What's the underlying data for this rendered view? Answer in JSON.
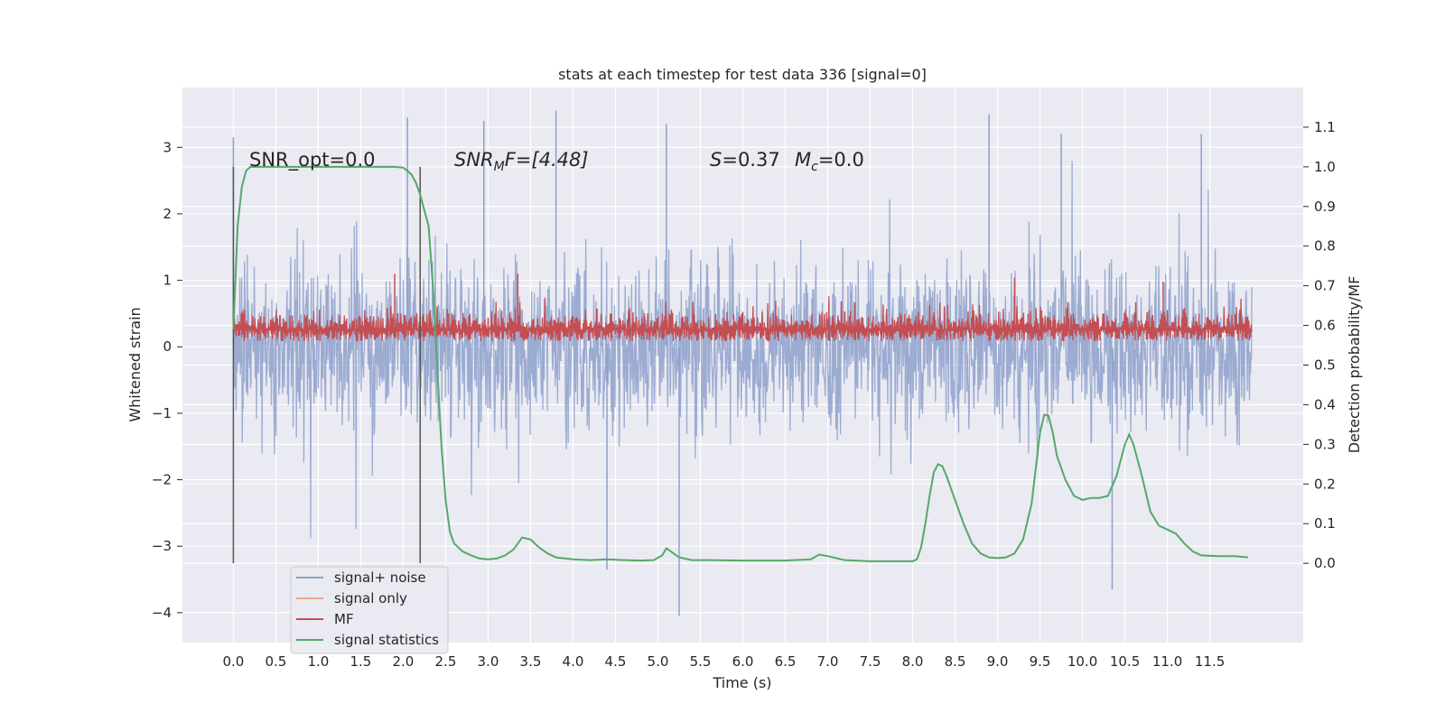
{
  "chart_data": {
    "type": "line",
    "title": "stats at each timestep for test data 336 [signal=0]",
    "xlabel": "Time (s)",
    "ylabel": "Whitened strain",
    "ylabel_right": "Detection probability/MF",
    "xlim": [
      -0.6,
      12.6
    ],
    "ylim": [
      -4.45,
      3.9
    ],
    "ylim_right": [
      -0.2,
      1.2
    ],
    "x_ticks": [
      "0.0",
      "0.5",
      "1.0",
      "1.5",
      "2.0",
      "2.5",
      "3.0",
      "3.5",
      "4.0",
      "4.5",
      "5.0",
      "5.5",
      "6.0",
      "6.5",
      "7.0",
      "7.5",
      "8.0",
      "8.5",
      "9.0",
      "9.5",
      "10.0",
      "10.5",
      "11.0",
      "11.5"
    ],
    "y_ticks": [
      "3",
      "2",
      "1",
      "0",
      "−1",
      "−2",
      "−3",
      "−4"
    ],
    "y_ticks_right": [
      "1.1",
      "1.0",
      "0.9",
      "0.8",
      "0.7",
      "0.6",
      "0.5",
      "0.4",
      "0.3",
      "0.2",
      "0.1",
      "0.0"
    ],
    "grid": true,
    "legend_position": "lower-left",
    "annotations": {
      "snr_opt": "SNR_opt=0.0",
      "snr_mf_prefix": "SNR",
      "snr_mf_sub": "M",
      "snr_mf_suffix": "F=[4.48]",
      "s_label": "S",
      "s_value": "=0.37",
      "mc_label": "M",
      "mc_sub": "c",
      "mc_value": "=0.0"
    },
    "vertical_markers": [
      0.0,
      2.2
    ],
    "series": [
      {
        "name": "signal+ noise",
        "color": "#8da0cb",
        "description_range": [
          -4.1,
          3.55
        ],
        "peaks": [
          {
            "x": 0.0,
            "y": 3.15
          },
          {
            "x": 2.05,
            "y": 3.45
          },
          {
            "x": 2.95,
            "y": 3.4
          },
          {
            "x": 3.8,
            "y": 3.55
          },
          {
            "x": 5.1,
            "y": 3.35
          },
          {
            "x": 8.9,
            "y": 3.5
          },
          {
            "x": 9.75,
            "y": 3.2
          },
          {
            "x": 11.4,
            "y": 3.2
          },
          {
            "x": 5.25,
            "y": -4.05
          },
          {
            "x": 10.35,
            "y": -3.65
          },
          {
            "x": 4.4,
            "y": -3.35
          }
        ]
      },
      {
        "name": "signal only",
        "color": "#e8a98a",
        "values": []
      },
      {
        "name": "MF",
        "color": "#c44e52",
        "axis": "right",
        "base": 0.59,
        "band": [
          0.57,
          0.68
        ],
        "peaks": [
          {
            "x": 1.9,
            "y": 0.73
          },
          {
            "x": 3.35,
            "y": 0.73
          },
          {
            "x": 9.2,
            "y": 0.72
          },
          {
            "x": 10.95,
            "y": 0.71
          }
        ]
      },
      {
        "name": "signal statistics",
        "color": "#55a868",
        "axis": "right",
        "x": [
          0.0,
          0.05,
          0.1,
          0.15,
          0.2,
          0.3,
          0.5,
          1.0,
          1.5,
          1.9,
          2.0,
          2.05,
          2.1,
          2.15,
          2.2,
          2.3,
          2.35,
          2.4,
          2.45,
          2.5,
          2.55,
          2.6,
          2.7,
          2.8,
          2.9,
          3.0,
          3.1,
          3.2,
          3.3,
          3.4,
          3.5,
          3.6,
          3.7,
          3.8,
          4.0,
          4.2,
          4.4,
          4.6,
          4.8,
          4.95,
          5.05,
          5.1,
          5.15,
          5.25,
          5.4,
          5.6,
          6.0,
          6.5,
          6.8,
          6.9,
          7.0,
          7.2,
          7.5,
          8.0,
          8.05,
          8.1,
          8.15,
          8.2,
          8.25,
          8.3,
          8.35,
          8.4,
          8.5,
          8.6,
          8.7,
          8.8,
          8.9,
          9.0,
          9.1,
          9.2,
          9.3,
          9.4,
          9.45,
          9.5,
          9.55,
          9.6,
          9.65,
          9.7,
          9.8,
          9.9,
          10.0,
          10.1,
          10.2,
          10.3,
          10.4,
          10.5,
          10.55,
          10.6,
          10.7,
          10.8,
          10.9,
          11.0,
          11.1,
          11.2,
          11.3,
          11.4,
          11.6,
          11.8,
          11.95
        ],
        "values": [
          0.59,
          0.85,
          0.95,
          0.99,
          1.0,
          1.0,
          1.0,
          1.0,
          1.0,
          1.0,
          0.998,
          0.99,
          0.98,
          0.96,
          0.93,
          0.85,
          0.7,
          0.5,
          0.3,
          0.16,
          0.08,
          0.05,
          0.03,
          0.02,
          0.012,
          0.01,
          0.012,
          0.02,
          0.035,
          0.065,
          0.06,
          0.04,
          0.025,
          0.015,
          0.01,
          0.008,
          0.01,
          0.008,
          0.007,
          0.008,
          0.02,
          0.038,
          0.03,
          0.015,
          0.008,
          0.008,
          0.007,
          0.007,
          0.01,
          0.022,
          0.018,
          0.008,
          0.005,
          0.005,
          0.01,
          0.04,
          0.1,
          0.17,
          0.23,
          0.25,
          0.245,
          0.22,
          0.16,
          0.1,
          0.05,
          0.025,
          0.015,
          0.013,
          0.015,
          0.025,
          0.06,
          0.15,
          0.24,
          0.33,
          0.375,
          0.372,
          0.33,
          0.27,
          0.21,
          0.17,
          0.16,
          0.165,
          0.165,
          0.17,
          0.22,
          0.3,
          0.325,
          0.3,
          0.22,
          0.13,
          0.095,
          0.085,
          0.075,
          0.05,
          0.03,
          0.02,
          0.018,
          0.018,
          0.015
        ]
      }
    ]
  }
}
